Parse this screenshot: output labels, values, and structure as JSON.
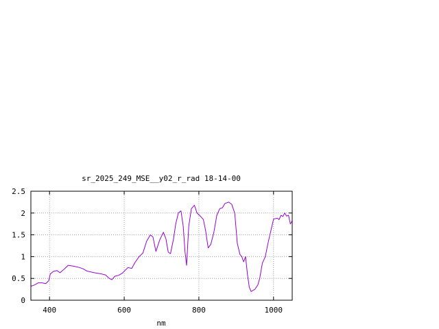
{
  "chart_data": {
    "type": "line",
    "title": "sr_2025_249_MSE__y02_r_rad 18-14-00",
    "xlabel": "nm",
    "ylabel": "",
    "xlim": [
      350,
      1050
    ],
    "ylim": [
      0,
      2.5
    ],
    "x_ticks": [
      400,
      600,
      800,
      1000
    ],
    "x_tick_labels": [
      "400",
      "600",
      "800",
      "1000"
    ],
    "y_ticks": [
      0,
      0.5,
      1,
      1.5,
      2,
      2.5
    ],
    "y_tick_labels": [
      "0",
      "0.5",
      "1",
      "1.5",
      "2",
      "2.5"
    ],
    "grid": true,
    "grid_style": "dotted",
    "legend": "none",
    "series": [
      {
        "color": "#9400d3",
        "points": [
          [
            350,
            0.32
          ],
          [
            360,
            0.35
          ],
          [
            370,
            0.4
          ],
          [
            380,
            0.4
          ],
          [
            390,
            0.38
          ],
          [
            398,
            0.45
          ],
          [
            402,
            0.6
          ],
          [
            410,
            0.66
          ],
          [
            420,
            0.68
          ],
          [
            428,
            0.63
          ],
          [
            440,
            0.72
          ],
          [
            450,
            0.8
          ],
          [
            465,
            0.78
          ],
          [
            480,
            0.75
          ],
          [
            490,
            0.72
          ],
          [
            500,
            0.67
          ],
          [
            520,
            0.63
          ],
          [
            540,
            0.6
          ],
          [
            550,
            0.58
          ],
          [
            560,
            0.5
          ],
          [
            567,
            0.47
          ],
          [
            575,
            0.55
          ],
          [
            585,
            0.57
          ],
          [
            595,
            0.62
          ],
          [
            610,
            0.75
          ],
          [
            620,
            0.73
          ],
          [
            630,
            0.88
          ],
          [
            640,
            1.0
          ],
          [
            650,
            1.08
          ],
          [
            660,
            1.35
          ],
          [
            670,
            1.5
          ],
          [
            677,
            1.45
          ],
          [
            685,
            1.12
          ],
          [
            695,
            1.38
          ],
          [
            705,
            1.56
          ],
          [
            712,
            1.4
          ],
          [
            718,
            1.1
          ],
          [
            724,
            1.07
          ],
          [
            732,
            1.4
          ],
          [
            738,
            1.75
          ],
          [
            745,
            2.0
          ],
          [
            752,
            2.05
          ],
          [
            758,
            1.7
          ],
          [
            763,
            1.1
          ],
          [
            767,
            0.8
          ],
          [
            773,
            1.7
          ],
          [
            780,
            2.1
          ],
          [
            788,
            2.18
          ],
          [
            795,
            2.0
          ],
          [
            805,
            1.92
          ],
          [
            812,
            1.85
          ],
          [
            818,
            1.6
          ],
          [
            825,
            1.2
          ],
          [
            832,
            1.28
          ],
          [
            840,
            1.55
          ],
          [
            848,
            1.95
          ],
          [
            856,
            2.1
          ],
          [
            863,
            2.12
          ],
          [
            870,
            2.22
          ],
          [
            880,
            2.25
          ],
          [
            888,
            2.2
          ],
          [
            896,
            2.0
          ],
          [
            903,
            1.3
          ],
          [
            910,
            1.05
          ],
          [
            915,
            1.0
          ],
          [
            920,
            0.88
          ],
          [
            925,
            1.0
          ],
          [
            930,
            0.6
          ],
          [
            935,
            0.3
          ],
          [
            940,
            0.2
          ],
          [
            950,
            0.25
          ],
          [
            958,
            0.35
          ],
          [
            963,
            0.5
          ],
          [
            970,
            0.85
          ],
          [
            978,
            1.0
          ],
          [
            985,
            1.3
          ],
          [
            993,
            1.6
          ],
          [
            1000,
            1.86
          ],
          [
            1010,
            1.88
          ],
          [
            1015,
            1.85
          ],
          [
            1020,
            1.95
          ],
          [
            1025,
            1.92
          ],
          [
            1030,
            2.0
          ],
          [
            1035,
            1.93
          ],
          [
            1040,
            1.95
          ],
          [
            1045,
            1.75
          ],
          [
            1050,
            1.82
          ]
        ]
      }
    ]
  }
}
